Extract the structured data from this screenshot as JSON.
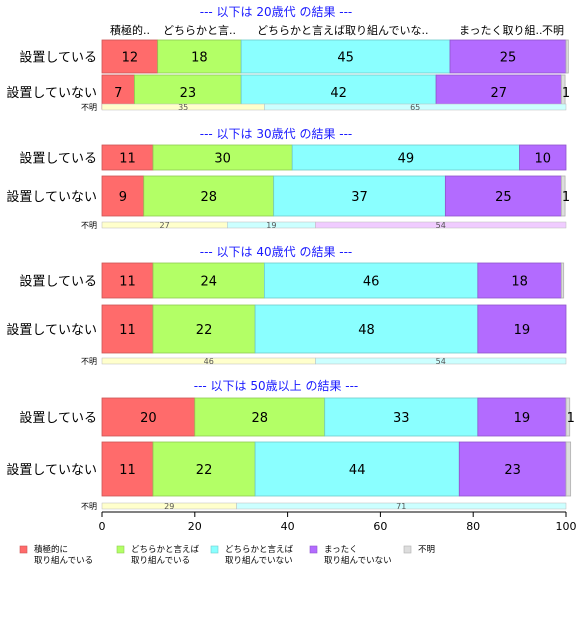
{
  "chart_data": {
    "type": "bar",
    "orientation": "horizontal",
    "stacked": "percent",
    "xlim": [
      0,
      100
    ],
    "xticks": [
      0,
      20,
      40,
      60,
      80,
      100
    ],
    "categories": [
      "設置している",
      "設置していない"
    ],
    "header_labels": [
      "積極的..",
      "どちらかと言..",
      "どちらかと言えば取り組んでいな..",
      "まったく取り組..",
      "不明"
    ],
    "legend": {
      "position": "bottom-left",
      "entries": [
        {
          "label": "積極的に\n取り組んでいる",
          "color": "#ff6b6b"
        },
        {
          "label": "どちらかと言えば\n取り組んでいる",
          "color": "#b3ff66"
        },
        {
          "label": "どちらかと言えば\n取り組んでいない",
          "color": "#8affff"
        },
        {
          "label": "まったく\n取り組んでいない",
          "color": "#b36bff"
        },
        {
          "label": "不明",
          "color": "#dddddd"
        }
      ]
    },
    "panels": [
      {
        "title": "--- 以下は 20歳代 の結果 ---",
        "rows": [
          {
            "category": "設置している",
            "values": [
              12,
              18,
              45,
              25,
              0.5
            ],
            "labels": [
              "12",
              "18",
              "45",
              "25",
              ""
            ]
          },
          {
            "category": "設置していない",
            "values": [
              7,
              23,
              42,
              27,
              0.8
            ],
            "labels": [
              "7",
              "23",
              "42",
              "27",
              "1"
            ]
          }
        ],
        "unknown": {
          "label": "不明",
          "values": [
            35,
            65
          ],
          "labels": [
            "35",
            "65"
          ],
          "colors": [
            "#ffffcc",
            "#ccffff"
          ]
        }
      },
      {
        "title": "--- 以下は 30歳代 の結果 ---",
        "rows": [
          {
            "category": "設置している",
            "values": [
              11,
              30,
              49,
              10,
              0
            ],
            "labels": [
              "11",
              "30",
              "49",
              "10",
              ""
            ]
          },
          {
            "category": "設置していない",
            "values": [
              9,
              28,
              37,
              25,
              0.8
            ],
            "labels": [
              "9",
              "28",
              "37",
              "25",
              "1"
            ]
          }
        ],
        "unknown": {
          "label": "不明",
          "values": [
            27,
            19,
            54
          ],
          "labels": [
            "27",
            "19",
            "54"
          ],
          "colors": [
            "#ffffcc",
            "#ccffff",
            "#f0ccff"
          ]
        }
      },
      {
        "title": "--- 以下は 40歳代 の結果 ---",
        "rows": [
          {
            "category": "設置している",
            "values": [
              11,
              24,
              46,
              18,
              0.5
            ],
            "labels": [
              "11",
              "24",
              "46",
              "18",
              ""
            ]
          },
          {
            "category": "設置していない",
            "values": [
              11,
              22,
              48,
              19,
              0
            ],
            "labels": [
              "11",
              "22",
              "48",
              "19",
              ""
            ]
          }
        ],
        "unknown": {
          "label": "不明",
          "values": [
            46,
            54
          ],
          "labels": [
            "46",
            "54"
          ],
          "colors": [
            "#ffffcc",
            "#ccffff"
          ]
        }
      },
      {
        "title": "--- 以下は 50歳以上 の結果 ---",
        "rows": [
          {
            "category": "設置している",
            "values": [
              20,
              28,
              33,
              19,
              0.8
            ],
            "labels": [
              "20",
              "28",
              "33",
              "19",
              "1"
            ]
          },
          {
            "category": "設置していない",
            "values": [
              11,
              22,
              44,
              23,
              1
            ],
            "labels": [
              "11",
              "22",
              "44",
              "23",
              ""
            ]
          }
        ],
        "unknown": {
          "label": "不明",
          "values": [
            29,
            71
          ],
          "labels": [
            "29",
            "71"
          ],
          "colors": [
            "#ffffcc",
            "#ccffff"
          ]
        }
      }
    ]
  }
}
